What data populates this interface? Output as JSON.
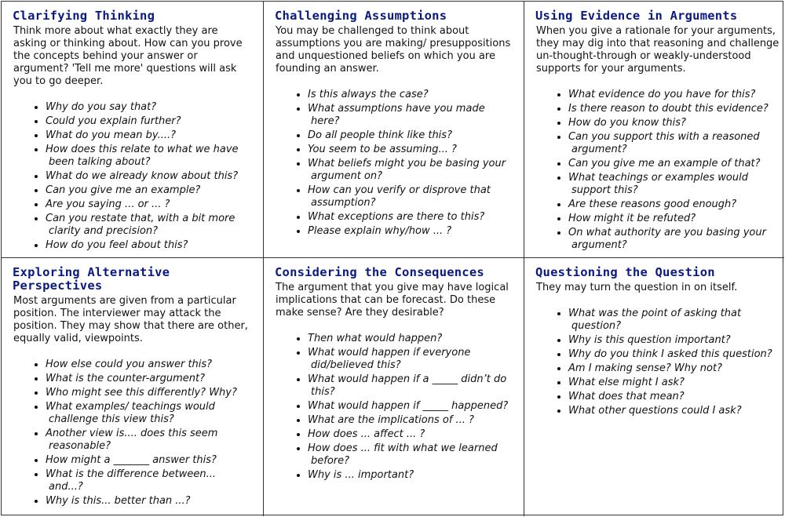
{
  "sections": [
    {
      "title": "Clarifying Thinking",
      "intro": "Think more about what exactly they are asking or thinking about. How can you prove the concepts behind your answer or argument? 'Tell me more' questions will ask you to go deeper.",
      "questions": [
        "Why do you say that?",
        "Could you explain further?",
        "What do you mean by....?",
        "How does this relate to what we have been talking about?",
        "What do we already know about this?",
        "Can you give me an example?",
        "Are you saying ... or ... ?",
        "Can you restate that, with a bit more clarity and precision?",
        "How do you feel about this?"
      ]
    },
    {
      "title": "Challenging Assumptions",
      "intro": "You may be challenged to think about assumptions you are making/ presuppositions and unquestioned beliefs on which you are founding an answer.",
      "questions": [
        "Is this always the case?",
        "What assumptions have you made here?",
        "Do all people think like this?",
        "You seem to be assuming... ?",
        "What beliefs might you be basing your argument on?",
        "How can you verify or disprove that assumption?",
        "What exceptions are there to this?",
        "Please explain why/how ... ?"
      ]
    },
    {
      "title": "Using Evidence in Arguments",
      "intro": "When you give a rationale for your arguments, they may dig into that reasoning and challenge un-thought-through or weakly-understood supports for your arguments.",
      "questions": [
        "What evidence do you have for this?",
        "Is there reason to doubt this evidence?",
        "How do you know this?",
        "Can you support this with a reasoned argument?",
        "Can you give me an example of that?",
        "What teachings or examples would support this?",
        "Are these reasons good enough?",
        "How might it be refuted?",
        "On what authority are you basing your argument?"
      ]
    },
    {
      "title": "Exploring Alternative Perspectives",
      "intro": "Most arguments are given from a particular position. The interviewer may attack the position. They may show that there are other, equally valid, viewpoints.",
      "questions": [
        "How else could you answer this?",
        "What is the counter-argument?",
        "Who might see this differently? Why?",
        "What examples/ teachings would challenge this view this?",
        "Another view is.... does this seem reasonable?",
        "How might a _______ answer this?",
        "What is the difference between... and...?",
        "Why is this...  better than ...?"
      ]
    },
    {
      "title": "Considering the Consequences",
      "intro": "The argument that you give may have logical implications that can be forecast. Do these make sense? Are they desirable?",
      "questions": [
        "Then what would happen?",
        "What would happen if everyone did/believed this?",
        "What would happen if a _____ didn’t do this?",
        "What would happen if _____ happened?",
        "What are the implications of ... ?",
        "How does ... affect ... ?",
        "How does ... fit with what we learned before?",
        "Why is ... important?"
      ]
    },
    {
      "title": "Questioning the Question",
      "intro": "They may turn the question in on itself.",
      "questions": [
        "What was the point of asking that question?",
        "Why is this question important?",
        "Why do you think I asked this question?",
        "Am I making sense? Why not?",
        "What else might I ask?",
        "What does that mean?",
        "What other questions could I ask?"
      ]
    }
  ]
}
